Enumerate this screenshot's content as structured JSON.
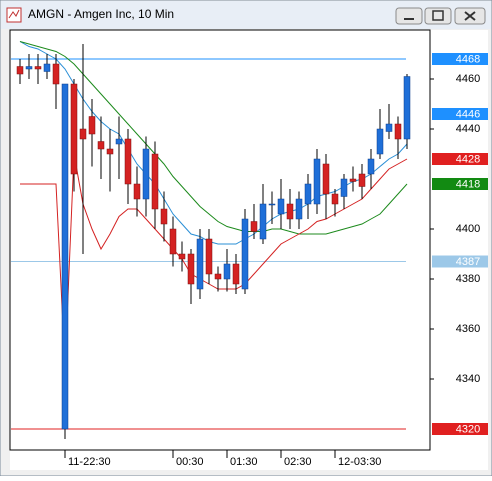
{
  "chart_data": {
    "type": "candlestick",
    "title": "AMGN - Amgen Inc, 10 Min",
    "categories": [
      null,
      null,
      null,
      null,
      null,
      "11-22:30",
      null,
      null,
      null,
      null,
      null,
      null,
      null,
      null,
      null,
      null,
      null,
      "00:30",
      null,
      null,
      null,
      null,
      null,
      "01:30",
      null,
      null,
      null,
      null,
      null,
      "02:30",
      null,
      null,
      null,
      null,
      null,
      "12-03:30",
      null,
      null,
      null,
      null,
      null,
      null,
      null,
      null
    ],
    "open": [
      4465,
      4464,
      4465,
      4463,
      4466,
      4320,
      4458,
      4440,
      4445,
      4435,
      4432,
      4434,
      4436,
      4418,
      4412,
      4430,
      4408,
      4400,
      4390,
      4390,
      4376,
      4396,
      4382,
      4380,
      4386,
      4376,
      4403,
      4396,
      4410,
      4406,
      4410,
      4404,
      4410,
      4410,
      4426,
      4414,
      4413,
      4420,
      4422,
      4422,
      4430,
      4439,
      4442,
      4436
    ],
    "high": [
      4468,
      4470,
      4470,
      4470,
      4470,
      4458,
      4460,
      4474,
      4452,
      4445,
      4440,
      4445,
      4440,
      4425,
      4437,
      4435,
      4415,
      4405,
      4395,
      4392,
      4400,
      4400,
      4385,
      4392,
      4390,
      4408,
      4410,
      4418,
      4415,
      4420,
      4416,
      4415,
      4422,
      4432,
      4430,
      4416,
      4422,
      4425,
      4426,
      4432,
      4448,
      4450,
      4445,
      4462
    ],
    "low": [
      4458,
      4460,
      4458,
      4460,
      4448,
      4316,
      4415,
      4390,
      4425,
      4420,
      4415,
      4420,
      4410,
      4405,
      4405,
      4400,
      4395,
      4385,
      4383,
      4370,
      4372,
      4378,
      4375,
      4375,
      4374,
      4374,
      4396,
      4394,
      4402,
      4400,
      4400,
      4400,
      4404,
      4406,
      4404,
      4405,
      4408,
      4415,
      4412,
      4416,
      4428,
      4436,
      4428,
      4432
    ],
    "close": [
      4462,
      4465,
      4464,
      4466,
      4458,
      4458,
      4422,
      4436,
      4438,
      4432,
      4430,
      4436,
      4418,
      4412,
      4432,
      4408,
      4402,
      4390,
      4388,
      4378,
      4396,
      4382,
      4380,
      4386,
      4378,
      4404,
      4399,
      4410,
      4410,
      4412,
      4404,
      4412,
      4418,
      4428,
      4414,
      4410,
      4420,
      4419,
      4417,
      4428,
      4440,
      4442,
      4436,
      4461
    ],
    "up_color": "#1f6fd8",
    "down_color": "#d42222",
    "series": [
      {
        "color": "#2a8fd6",
        "values": [
          4475,
          4473,
          4472,
          4470,
          4468,
          4464,
          4458,
          4452,
          4447,
          4443,
          4440,
          4438,
          4432,
          4426,
          4422,
          4418,
          4412,
          4406,
          4402,
          4398,
          4397,
          4395,
          4394,
          4394,
          4394,
          4396,
          4398,
          4401,
          4404,
          4406,
          4407,
          4408,
          4410,
          4413,
          4414,
          4415,
          4417,
          4419,
          4420,
          4422,
          4425,
          4428,
          4430,
          4434
        ]
      },
      {
        "color": "#1c8a1c",
        "values": [
          4475,
          4474,
          4473,
          4472,
          4471,
          4469,
          4466,
          4462,
          4458,
          4454,
          4450,
          4446,
          4442,
          4438,
          4434,
          4430,
          4426,
          4421,
          4417,
          4413,
          4409,
          4406,
          4403,
          4401,
          4400,
          4399,
          4399,
          4399,
          4400,
          4400,
          4399,
          4398,
          4398,
          4398,
          4398,
          4399,
          4400,
          4401,
          4402,
          4404,
          4406,
          4410,
          4414,
          4418
        ]
      },
      {
        "color": "#d42222",
        "values": [
          4418,
          4418,
          4418,
          4418,
          4418,
          4345,
          4430,
          4410,
          4400,
          4392,
          4398,
          4405,
          4408,
          4408,
          4404,
          4400,
          4396,
          4392,
          4388,
          4382,
          4380,
          4378,
          4376,
          4376,
          4376,
          4378,
          4382,
          4386,
          4390,
          4394,
          4396,
          4398,
          4400,
          4403,
          4404,
          4406,
          4408,
          4410,
          4412,
          4416,
          4420,
          4424,
          4426,
          4428
        ]
      }
    ],
    "levels": [
      {
        "value": 4468,
        "color": "#1e90ff",
        "line": true
      },
      {
        "value": 4446,
        "color": "#1e90ff",
        "line": false
      },
      {
        "value": 4428,
        "color": "#e02020",
        "line": false
      },
      {
        "value": 4418,
        "color": "#128a12",
        "line": false
      },
      {
        "value": 4387,
        "color": "#9cc8e8",
        "line": true
      },
      {
        "value": 4320,
        "color": "#e02020",
        "line": true
      }
    ],
    "ylim": [
      4311.6,
      4479.6
    ],
    "yticks": [
      4340,
      4360,
      4380,
      4400,
      4440,
      4460
    ],
    "grid": false
  }
}
